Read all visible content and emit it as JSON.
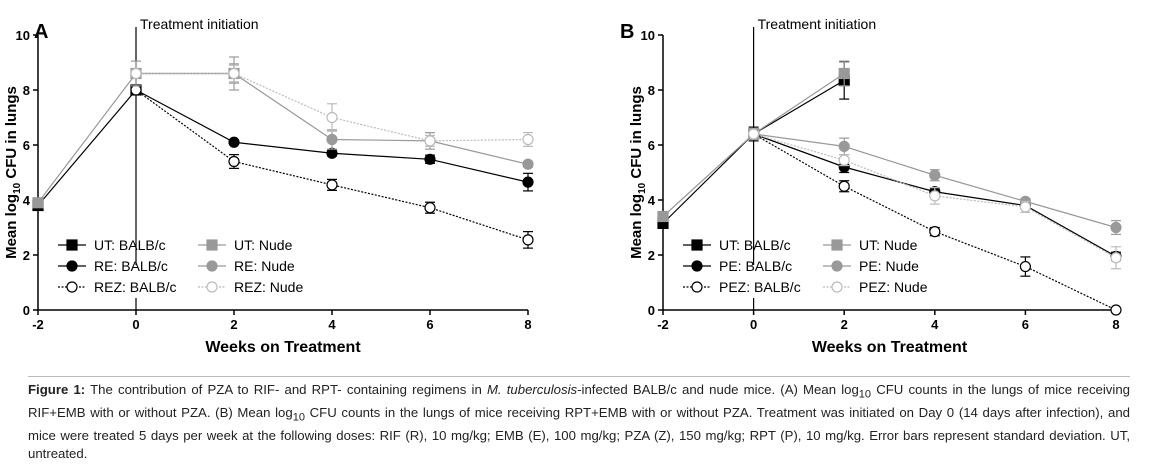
{
  "chart_data": [
    {
      "type": "line",
      "panel_label": "A",
      "annotation": "Treatment initiation",
      "xlabel": "Weeks on Treatment",
      "ylabel": "Mean log10 CFU in lungs",
      "xlim": [
        -2,
        8
      ],
      "ylim": [
        0,
        10
      ],
      "xticks": [
        "-2",
        "0",
        "2",
        "4",
        "6",
        "8"
      ],
      "yticks": [
        "0",
        "2",
        "4",
        "6",
        "8",
        "10"
      ],
      "legend": "bottom-left",
      "grid": false,
      "series": [
        {
          "name": "UT: BALB/c",
          "color": "#000000",
          "marker": "square",
          "fill": true,
          "dashed": false,
          "x": [
            -2,
            0
          ],
          "y": [
            3.8,
            8.0
          ],
          "err": [
            0.1,
            0.1
          ]
        },
        {
          "name": "RE: BALB/c",
          "color": "#000000",
          "marker": "circle",
          "fill": true,
          "dashed": false,
          "x": [
            0,
            2,
            4,
            6,
            8
          ],
          "y": [
            8.0,
            6.1,
            5.7,
            5.48,
            4.65
          ],
          "err": [
            0.1,
            0.08,
            0.1,
            0.15,
            0.32
          ]
        },
        {
          "name": "REZ: BALB/c",
          "color": "#000000",
          "marker": "circle",
          "fill": false,
          "dashed": true,
          "x": [
            0,
            2,
            4,
            6,
            8
          ],
          "y": [
            8.0,
            5.4,
            4.55,
            3.72,
            2.55
          ],
          "err": [
            0.1,
            0.25,
            0.2,
            0.2,
            0.3
          ]
        },
        {
          "name": "UT: Nude",
          "color": "#999999",
          "marker": "square",
          "fill": true,
          "dashed": false,
          "x": [
            -2,
            0,
            2
          ],
          "y": [
            3.9,
            8.6,
            8.6
          ],
          "err": [
            0.1,
            0.45,
            0.35
          ]
        },
        {
          "name": "RE: Nude",
          "color": "#999999",
          "marker": "circle",
          "fill": true,
          "dashed": false,
          "x": [
            0,
            2,
            4,
            6,
            8
          ],
          "y": [
            8.6,
            8.6,
            6.2,
            6.15,
            5.3
          ],
          "err": [
            0.1,
            0.6,
            0.35,
            0.3,
            0.1
          ]
        },
        {
          "name": "REZ: Nude",
          "color": "#bbbbbb",
          "marker": "circle",
          "fill": false,
          "dashed": true,
          "x": [
            0,
            2,
            4,
            6,
            8
          ],
          "y": [
            8.6,
            8.6,
            7.0,
            6.15,
            6.2
          ],
          "err": [
            0.1,
            0.3,
            0.5,
            0.2,
            0.25
          ]
        }
      ]
    },
    {
      "type": "line",
      "panel_label": "B",
      "annotation": "Treatment initiation",
      "xlabel": "Weeks on Treatment",
      "ylabel": "Mean log10 CFU in lungs",
      "xlim": [
        -2,
        8
      ],
      "ylim": [
        0,
        10
      ],
      "xticks": [
        "-2",
        "0",
        "2",
        "4",
        "6",
        "8"
      ],
      "yticks": [
        "0",
        "2",
        "4",
        "6",
        "8",
        "10"
      ],
      "legend": "bottom-left",
      "grid": false,
      "series": [
        {
          "name": "UT: BALB/c",
          "color": "#000000",
          "marker": "square",
          "fill": true,
          "dashed": false,
          "x": [
            -2,
            0,
            2
          ],
          "y": [
            3.15,
            6.4,
            8.35
          ],
          "err": [
            0.1,
            0.25,
            0.68
          ]
        },
        {
          "name": "PE: BALB/c",
          "color": "#000000",
          "marker": "circle",
          "fill": true,
          "dashed": false,
          "x": [
            0,
            2,
            4,
            6,
            8
          ],
          "y": [
            6.4,
            5.2,
            4.3,
            3.8,
            1.95
          ],
          "err": [
            0.1,
            0.2,
            0.15,
            0.1,
            0.15
          ]
        },
        {
          "name": "PEZ: BALB/c",
          "color": "#000000",
          "marker": "circle",
          "fill": false,
          "dashed": true,
          "x": [
            0,
            2,
            4,
            6,
            8
          ],
          "y": [
            6.4,
            4.5,
            2.85,
            1.58,
            0
          ],
          "err": [
            0.1,
            0.2,
            0.15,
            0.35,
            0
          ]
        },
        {
          "name": "UT: Nude",
          "color": "#999999",
          "marker": "square",
          "fill": true,
          "dashed": false,
          "x": [
            -2,
            0,
            2
          ],
          "y": [
            3.4,
            6.4,
            8.6
          ],
          "err": [
            0.1,
            0.2,
            0.45
          ]
        },
        {
          "name": "PE: Nude",
          "color": "#999999",
          "marker": "circle",
          "fill": true,
          "dashed": false,
          "x": [
            0,
            2,
            4,
            6,
            8
          ],
          "y": [
            6.4,
            5.95,
            4.9,
            3.95,
            3.0
          ],
          "err": [
            0.1,
            0.3,
            0.2,
            0.1,
            0.25
          ]
        },
        {
          "name": "PEZ: Nude",
          "color": "#bbbbbb",
          "marker": "circle",
          "fill": false,
          "dashed": true,
          "x": [
            0,
            2,
            4,
            6,
            8
          ],
          "y": [
            6.4,
            5.45,
            4.15,
            3.75,
            1.9
          ],
          "err": [
            0.1,
            0.2,
            0.3,
            0.2,
            0.4
          ]
        }
      ]
    }
  ],
  "caption": {
    "label": "Figure 1:",
    "p1": " The contribution of PZA to RIF- and RPT- containing regimens in ",
    "species": "M. tuberculosis",
    "p2": "-infected BALB/c and nude mice. (A) Mean log",
    "sub1": "10",
    "p3": " CFU counts in the lungs of mice receiving RIF+EMB with or without PZA. (B)  Mean log",
    "sub2": "10",
    "p4": " CFU counts in the lungs of mice receiving RPT+EMB with or without PZA. Treatment was initiated on Day 0 (14 days after infection), and mice were treated 5 days per week at the following doses: RIF (R), 10 mg/kg; EMB (E), 100 mg/kg; PZA (Z), 150 mg/kg; RPT (P), 10 mg/kg. Error bars represent standard deviation. UT, untreated."
  }
}
